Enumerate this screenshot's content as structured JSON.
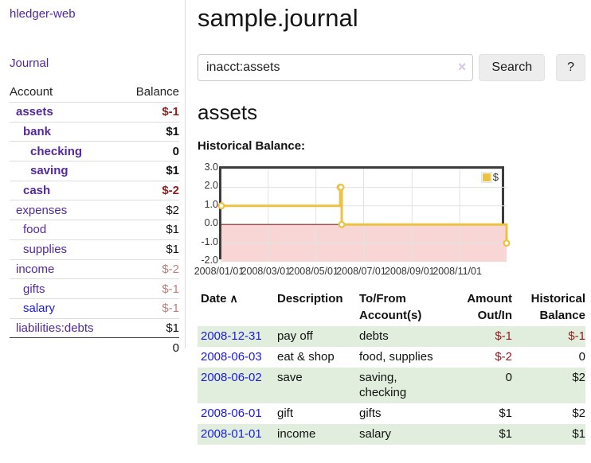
{
  "colors": {
    "link_purple": "#53299c",
    "link_blue": "#1b1bd8",
    "negative_strong": "#8f1d1d",
    "negative_soft": "#c17d7d",
    "row_stripe_green": "#e1eedd",
    "chart_gold": "#edc240",
    "chart_negative_region": "#f9d6d6",
    "chart_zero_line": "#8b1a1a"
  },
  "sidebar": {
    "app_title": "hledger-web",
    "nav": {
      "journal_label": "Journal"
    },
    "accounts_table": {
      "headers": {
        "account": "Account",
        "balance": "Balance"
      },
      "rows": [
        {
          "name": "assets",
          "balance": "$-1",
          "depth": 1,
          "strong": true,
          "unvisited": false
        },
        {
          "name": "bank",
          "balance": "$1",
          "depth": 2,
          "strong": true,
          "unvisited": false
        },
        {
          "name": "checking",
          "balance": "0",
          "depth": 3,
          "strong": true,
          "unvisited": false
        },
        {
          "name": "saving",
          "balance": "$1",
          "depth": 3,
          "strong": true,
          "unvisited": false
        },
        {
          "name": "cash",
          "balance": "$-2",
          "depth": 2,
          "strong": true,
          "unvisited": false
        },
        {
          "name": "expenses",
          "balance": "$2",
          "depth": 1,
          "strong": false,
          "unvisited": false
        },
        {
          "name": "food",
          "balance": "$1",
          "depth": 2,
          "strong": false,
          "unvisited": false
        },
        {
          "name": "supplies",
          "balance": "$1",
          "depth": 2,
          "strong": false,
          "unvisited": false
        },
        {
          "name": "income",
          "balance": "$-2",
          "depth": 1,
          "strong": false,
          "unvisited": false
        },
        {
          "name": "gifts",
          "balance": "$-1",
          "depth": 2,
          "strong": false,
          "unvisited": false
        },
        {
          "name": "salary",
          "balance": "$-1",
          "depth": 2,
          "strong": false,
          "unvisited": true
        },
        {
          "name": "liabilities:debts",
          "balance": "$1",
          "depth": 1,
          "strong": false,
          "unvisited": false
        }
      ],
      "total": "0"
    }
  },
  "main": {
    "title": "sample.journal",
    "search": {
      "value": "inacct:assets",
      "clear_icon": "×",
      "search_button": "Search",
      "help_button": "?"
    },
    "account_heading": "assets",
    "chart_label": "Historical Balance:"
  },
  "chart_data": {
    "type": "line",
    "step": true,
    "title": "Historical Balance",
    "series": [
      {
        "name": "$",
        "color": "#edc240",
        "points": [
          [
            "2008-01-01",
            1
          ],
          [
            "2008-06-01",
            2
          ],
          [
            "2008-06-02",
            2
          ],
          [
            "2008-06-03",
            0
          ],
          [
            "2008-12-31",
            -1
          ]
        ]
      }
    ],
    "xlim": [
      "2008-01-01",
      "2008-12-31"
    ],
    "ylim": [
      -2.0,
      3.0
    ],
    "yticks": [
      "3.0",
      "2.0",
      "1.0",
      "0.0",
      "-1.0",
      "-2.0"
    ],
    "xticks": [
      "2008/01/01",
      "2008/03/01",
      "2008/05/01",
      "2008/07/01",
      "2008/09/01",
      "2008/11/01"
    ],
    "legend_position": "top-right",
    "grid": true,
    "negative_region_color": "#f9d6d6",
    "zero_line_color": "#8b1a1a"
  },
  "register_table": {
    "headers": {
      "date": "Date",
      "sort_indicator": "∧",
      "description": "Description",
      "accounts": "To/From Account(s)",
      "amount": "Amount Out/In",
      "balance": "Historical Balance"
    },
    "rows": [
      {
        "date": "2008-12-31",
        "description": "pay off",
        "accounts": "debts",
        "amount": "$-1",
        "balance": "$-1"
      },
      {
        "date": "2008-06-03",
        "description": "eat & shop",
        "accounts": "food, supplies",
        "amount": "$-2",
        "balance": "0"
      },
      {
        "date": "2008-06-02",
        "description": "save",
        "accounts": "saving, checking",
        "amount": "0",
        "balance": "$2"
      },
      {
        "date": "2008-06-01",
        "description": "gift",
        "accounts": "gifts",
        "amount": "$1",
        "balance": "$2"
      },
      {
        "date": "2008-01-01",
        "description": "income",
        "accounts": "salary",
        "amount": "$1",
        "balance": "$1"
      }
    ]
  }
}
